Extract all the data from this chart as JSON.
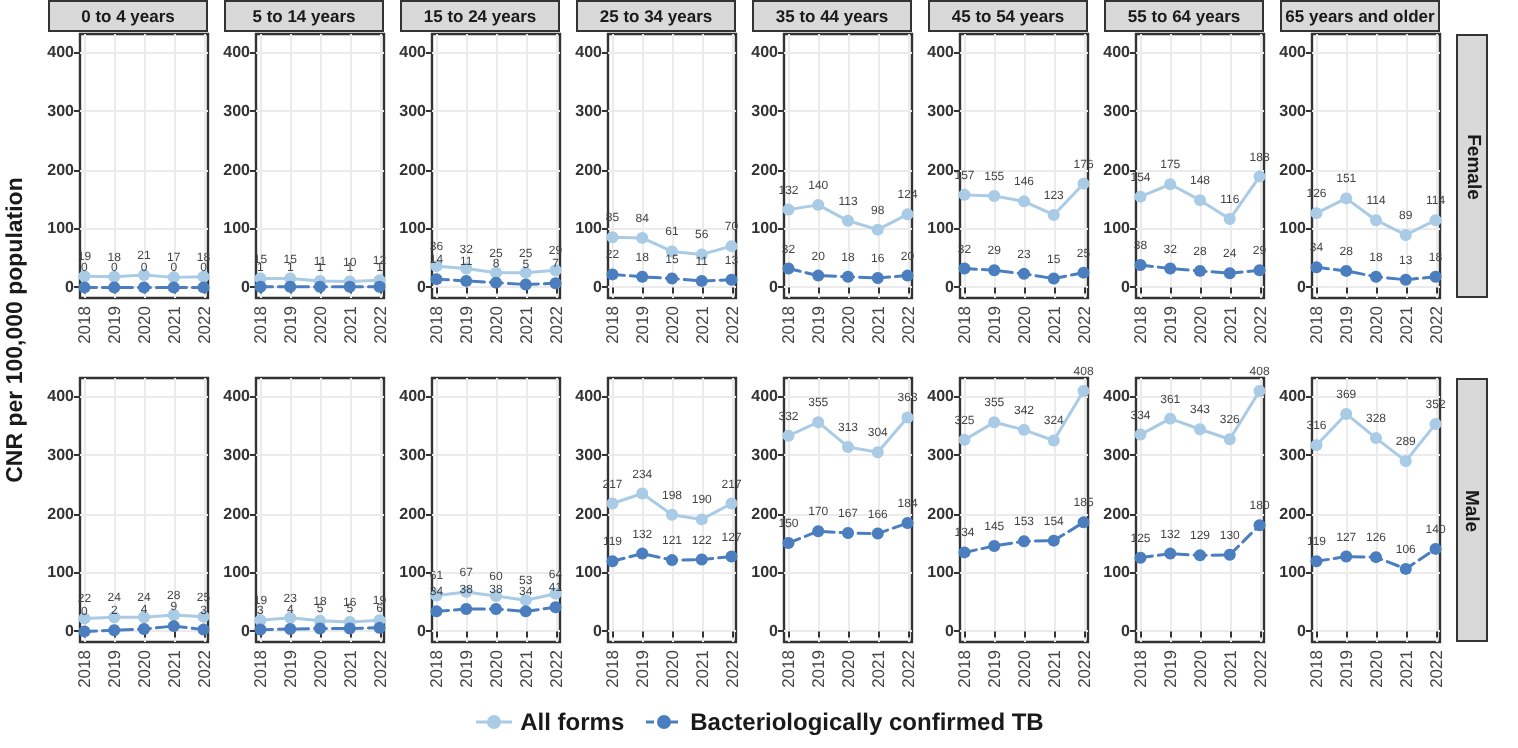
{
  "chart_data": [
    {
      "type": "line",
      "title": "0 to 4 years",
      "ylabel": "CNR per 100,000 population",
      "legend": "bottom",
      "x": [
        2018,
        2019,
        2020,
        2021,
        2022
      ],
      "xlim": [
        2017.85,
        2022.15
      ],
      "xticks": [
        2018,
        2019,
        2020,
        2021,
        2022
      ],
      "ylim": [
        -18,
        430
      ],
      "yticks": [
        0,
        100,
        200,
        300,
        400
      ],
      "grid": true,
      "marker": "circle",
      "data_labels": true,
      "series": [
        {
          "name": "All forms",
          "color": "#a9cbe6",
          "line_style": "solid",
          "values": [
            19,
            18,
            21,
            17,
            18
          ]
        },
        {
          "name": "Bacteriologically confirmed TB",
          "color": "#4a7ebf",
          "line_style": "dashed",
          "values": [
            0,
            0,
            0,
            0,
            0
          ]
        }
      ]
    },
    {
      "type": "line",
      "title": "5 to 14 years",
      "x": [
        2018,
        2019,
        2020,
        2021,
        2022
      ],
      "xlim": [
        2017.85,
        2022.15
      ],
      "xticks": [
        2018,
        2019,
        2020,
        2021,
        2022
      ],
      "ylim": [
        -18,
        430
      ],
      "yticks": [
        0,
        100,
        200,
        300,
        400
      ],
      "grid": true,
      "marker": "circle",
      "data_labels": true,
      "series": [
        {
          "color": "#a9cbe6",
          "line_style": "solid",
          "values": [
            15,
            15,
            11,
            10,
            12
          ]
        },
        {
          "color": "#4a7ebf",
          "line_style": "dashed",
          "values": [
            1,
            1,
            1,
            1,
            1
          ]
        }
      ]
    },
    {
      "type": "line",
      "title": "15 to 24 years",
      "x": [
        2018,
        2019,
        2020,
        2021,
        2022
      ],
      "xlim": [
        2017.85,
        2022.15
      ],
      "xticks": [
        2018,
        2019,
        2020,
        2021,
        2022
      ],
      "ylim": [
        -18,
        430
      ],
      "yticks": [
        0,
        100,
        200,
        300,
        400
      ],
      "grid": true,
      "marker": "circle",
      "data_labels": true,
      "series": [
        {
          "color": "#a9cbe6",
          "line_style": "solid",
          "values": [
            36,
            32,
            25,
            25,
            29
          ]
        },
        {
          "color": "#4a7ebf",
          "line_style": "dashed",
          "values": [
            14,
            11,
            8,
            5,
            7
          ]
        }
      ]
    },
    {
      "type": "line",
      "title": "25 to 34 years",
      "x": [
        2018,
        2019,
        2020,
        2021,
        2022
      ],
      "xlim": [
        2017.85,
        2022.15
      ],
      "xticks": [
        2018,
        2019,
        2020,
        2021,
        2022
      ],
      "ylim": [
        -18,
        430
      ],
      "yticks": [
        0,
        100,
        200,
        300,
        400
      ],
      "grid": true,
      "marker": "circle",
      "data_labels": true,
      "series": [
        {
          "color": "#a9cbe6",
          "line_style": "solid",
          "values": [
            85,
            84,
            61,
            56,
            70
          ]
        },
        {
          "color": "#4a7ebf",
          "line_style": "dashed",
          "values": [
            22,
            18,
            15,
            11,
            13
          ]
        }
      ]
    },
    {
      "type": "line",
      "title": "35 to 44 years",
      "x": [
        2018,
        2019,
        2020,
        2021,
        2022
      ],
      "xlim": [
        2017.85,
        2022.15
      ],
      "xticks": [
        2018,
        2019,
        2020,
        2021,
        2022
      ],
      "ylim": [
        -18,
        430
      ],
      "yticks": [
        0,
        100,
        200,
        300,
        400
      ],
      "grid": true,
      "marker": "circle",
      "data_labels": true,
      "series": [
        {
          "color": "#a9cbe6",
          "line_style": "solid",
          "values": [
            132,
            140,
            113,
            98,
            124
          ]
        },
        {
          "color": "#4a7ebf",
          "line_style": "dashed",
          "values": [
            32,
            20,
            18,
            16,
            20
          ]
        }
      ]
    },
    {
      "type": "line",
      "title": "45 to 54 years",
      "x": [
        2018,
        2019,
        2020,
        2021,
        2022
      ],
      "xlim": [
        2017.85,
        2022.15
      ],
      "xticks": [
        2018,
        2019,
        2020,
        2021,
        2022
      ],
      "ylim": [
        -18,
        430
      ],
      "yticks": [
        0,
        100,
        200,
        300,
        400
      ],
      "grid": true,
      "marker": "circle",
      "data_labels": true,
      "series": [
        {
          "color": "#a9cbe6",
          "line_style": "solid",
          "values": [
            157,
            155,
            146,
            123,
            176
          ]
        },
        {
          "color": "#4a7ebf",
          "line_style": "dashed",
          "values": [
            32,
            29,
            23,
            15,
            25
          ]
        }
      ]
    },
    {
      "type": "line",
      "title": "55 to 64 years",
      "x": [
        2018,
        2019,
        2020,
        2021,
        2022
      ],
      "xlim": [
        2017.85,
        2022.15
      ],
      "xticks": [
        2018,
        2019,
        2020,
        2021,
        2022
      ],
      "ylim": [
        -18,
        430
      ],
      "yticks": [
        0,
        100,
        200,
        300,
        400
      ],
      "grid": true,
      "marker": "circle",
      "data_labels": true,
      "series": [
        {
          "color": "#a9cbe6",
          "line_style": "solid",
          "values": [
            154,
            175,
            148,
            116,
            188
          ]
        },
        {
          "color": "#4a7ebf",
          "line_style": "dashed",
          "values": [
            38,
            32,
            28,
            24,
            29
          ]
        }
      ]
    },
    {
      "type": "line",
      "title": "65 years and older",
      "annotations": [
        "Female"
      ],
      "x": [
        2018,
        2019,
        2020,
        2021,
        2022
      ],
      "xlim": [
        2017.85,
        2022.15
      ],
      "xticks": [
        2018,
        2019,
        2020,
        2021,
        2022
      ],
      "ylim": [
        -18,
        430
      ],
      "yticks": [
        0,
        100,
        200,
        300,
        400
      ],
      "grid": true,
      "marker": "circle",
      "data_labels": true,
      "series": [
        {
          "color": "#a9cbe6",
          "line_style": "solid",
          "values": [
            126,
            151,
            114,
            89,
            114
          ]
        },
        {
          "color": "#4a7ebf",
          "line_style": "dashed",
          "values": [
            34,
            28,
            18,
            13,
            18
          ]
        }
      ]
    },
    {
      "type": "line",
      "x": [
        2018,
        2019,
        2020,
        2021,
        2022
      ],
      "xlim": [
        2017.85,
        2022.15
      ],
      "xticks": [
        2018,
        2019,
        2020,
        2021,
        2022
      ],
      "ylim": [
        -18,
        430
      ],
      "yticks": [
        0,
        100,
        200,
        300,
        400
      ],
      "grid": true,
      "marker": "circle",
      "data_labels": true,
      "series": [
        {
          "color": "#a9cbe6",
          "line_style": "solid",
          "values": [
            22,
            24,
            24,
            28,
            25
          ]
        },
        {
          "color": "#4a7ebf",
          "line_style": "dashed",
          "values": [
            0,
            2,
            4,
            9,
            3
          ]
        }
      ]
    },
    {
      "type": "line",
      "x": [
        2018,
        2019,
        2020,
        2021,
        2022
      ],
      "xlim": [
        2017.85,
        2022.15
      ],
      "xticks": [
        2018,
        2019,
        2020,
        2021,
        2022
      ],
      "ylim": [
        -18,
        430
      ],
      "yticks": [
        0,
        100,
        200,
        300,
        400
      ],
      "grid": true,
      "marker": "circle",
      "data_labels": true,
      "series": [
        {
          "color": "#a9cbe6",
          "line_style": "solid",
          "values": [
            19,
            23,
            18,
            16,
            19
          ]
        },
        {
          "color": "#4a7ebf",
          "line_style": "dashed",
          "values": [
            3,
            4,
            5,
            5,
            6
          ]
        }
      ]
    },
    {
      "type": "line",
      "x": [
        2018,
        2019,
        2020,
        2021,
        2022
      ],
      "xlim": [
        2017.85,
        2022.15
      ],
      "xticks": [
        2018,
        2019,
        2020,
        2021,
        2022
      ],
      "ylim": [
        -18,
        430
      ],
      "yticks": [
        0,
        100,
        200,
        300,
        400
      ],
      "grid": true,
      "marker": "circle",
      "data_labels": true,
      "series": [
        {
          "color": "#a9cbe6",
          "line_style": "solid",
          "values": [
            61,
            67,
            60,
            53,
            64
          ]
        },
        {
          "color": "#4a7ebf",
          "line_style": "dashed",
          "values": [
            34,
            38,
            38,
            34,
            41
          ]
        }
      ]
    },
    {
      "type": "line",
      "x": [
        2018,
        2019,
        2020,
        2021,
        2022
      ],
      "xlim": [
        2017.85,
        2022.15
      ],
      "xticks": [
        2018,
        2019,
        2020,
        2021,
        2022
      ],
      "ylim": [
        -18,
        430
      ],
      "yticks": [
        0,
        100,
        200,
        300,
        400
      ],
      "grid": true,
      "marker": "circle",
      "data_labels": true,
      "series": [
        {
          "color": "#a9cbe6",
          "line_style": "solid",
          "values": [
            217,
            234,
            198,
            190,
            217
          ]
        },
        {
          "color": "#4a7ebf",
          "line_style": "dashed",
          "values": [
            119,
            132,
            121,
            122,
            127
          ]
        }
      ]
    },
    {
      "type": "line",
      "x": [
        2018,
        2019,
        2020,
        2021,
        2022
      ],
      "xlim": [
        2017.85,
        2022.15
      ],
      "xticks": [
        2018,
        2019,
        2020,
        2021,
        2022
      ],
      "ylim": [
        -18,
        430
      ],
      "yticks": [
        0,
        100,
        200,
        300,
        400
      ],
      "grid": true,
      "marker": "circle",
      "data_labels": true,
      "series": [
        {
          "color": "#a9cbe6",
          "line_style": "solid",
          "values": [
            332,
            355,
            313,
            304,
            363
          ]
        },
        {
          "color": "#4a7ebf",
          "line_style": "dashed",
          "values": [
            150,
            170,
            167,
            166,
            184
          ]
        }
      ]
    },
    {
      "type": "line",
      "x": [
        2018,
        2019,
        2020,
        2021,
        2022
      ],
      "xlim": [
        2017.85,
        2022.15
      ],
      "xticks": [
        2018,
        2019,
        2020,
        2021,
        2022
      ],
      "ylim": [
        -18,
        430
      ],
      "yticks": [
        0,
        100,
        200,
        300,
        400
      ],
      "grid": true,
      "marker": "circle",
      "data_labels": true,
      "series": [
        {
          "color": "#a9cbe6",
          "line_style": "solid",
          "values": [
            325,
            355,
            342,
            324,
            408
          ]
        },
        {
          "color": "#4a7ebf",
          "line_style": "dashed",
          "values": [
            134,
            145,
            153,
            154,
            185
          ]
        }
      ]
    },
    {
      "type": "line",
      "x": [
        2018,
        2019,
        2020,
        2021,
        2022
      ],
      "xlim": [
        2017.85,
        2022.15
      ],
      "xticks": [
        2018,
        2019,
        2020,
        2021,
        2022
      ],
      "ylim": [
        -18,
        430
      ],
      "yticks": [
        0,
        100,
        200,
        300,
        400
      ],
      "grid": true,
      "marker": "circle",
      "data_labels": true,
      "series": [
        {
          "color": "#a9cbe6",
          "line_style": "solid",
          "values": [
            334,
            361,
            343,
            326,
            408
          ]
        },
        {
          "color": "#4a7ebf",
          "line_style": "dashed",
          "values": [
            125,
            132,
            129,
            130,
            180
          ]
        }
      ]
    },
    {
      "type": "line",
      "annotations": [
        "Male"
      ],
      "x": [
        2018,
        2019,
        2020,
        2021,
        2022
      ],
      "xlim": [
        2017.85,
        2022.15
      ],
      "xticks": [
        2018,
        2019,
        2020,
        2021,
        2022
      ],
      "ylim": [
        -18,
        430
      ],
      "yticks": [
        0,
        100,
        200,
        300,
        400
      ],
      "grid": true,
      "marker": "circle",
      "data_labels": true,
      "series": [
        {
          "color": "#a9cbe6",
          "line_style": "solid",
          "values": [
            316,
            369,
            328,
            289,
            352
          ]
        },
        {
          "color": "#4a7ebf",
          "line_style": "dashed",
          "values": [
            119,
            127,
            126,
            106,
            140
          ]
        }
      ]
    }
  ]
}
